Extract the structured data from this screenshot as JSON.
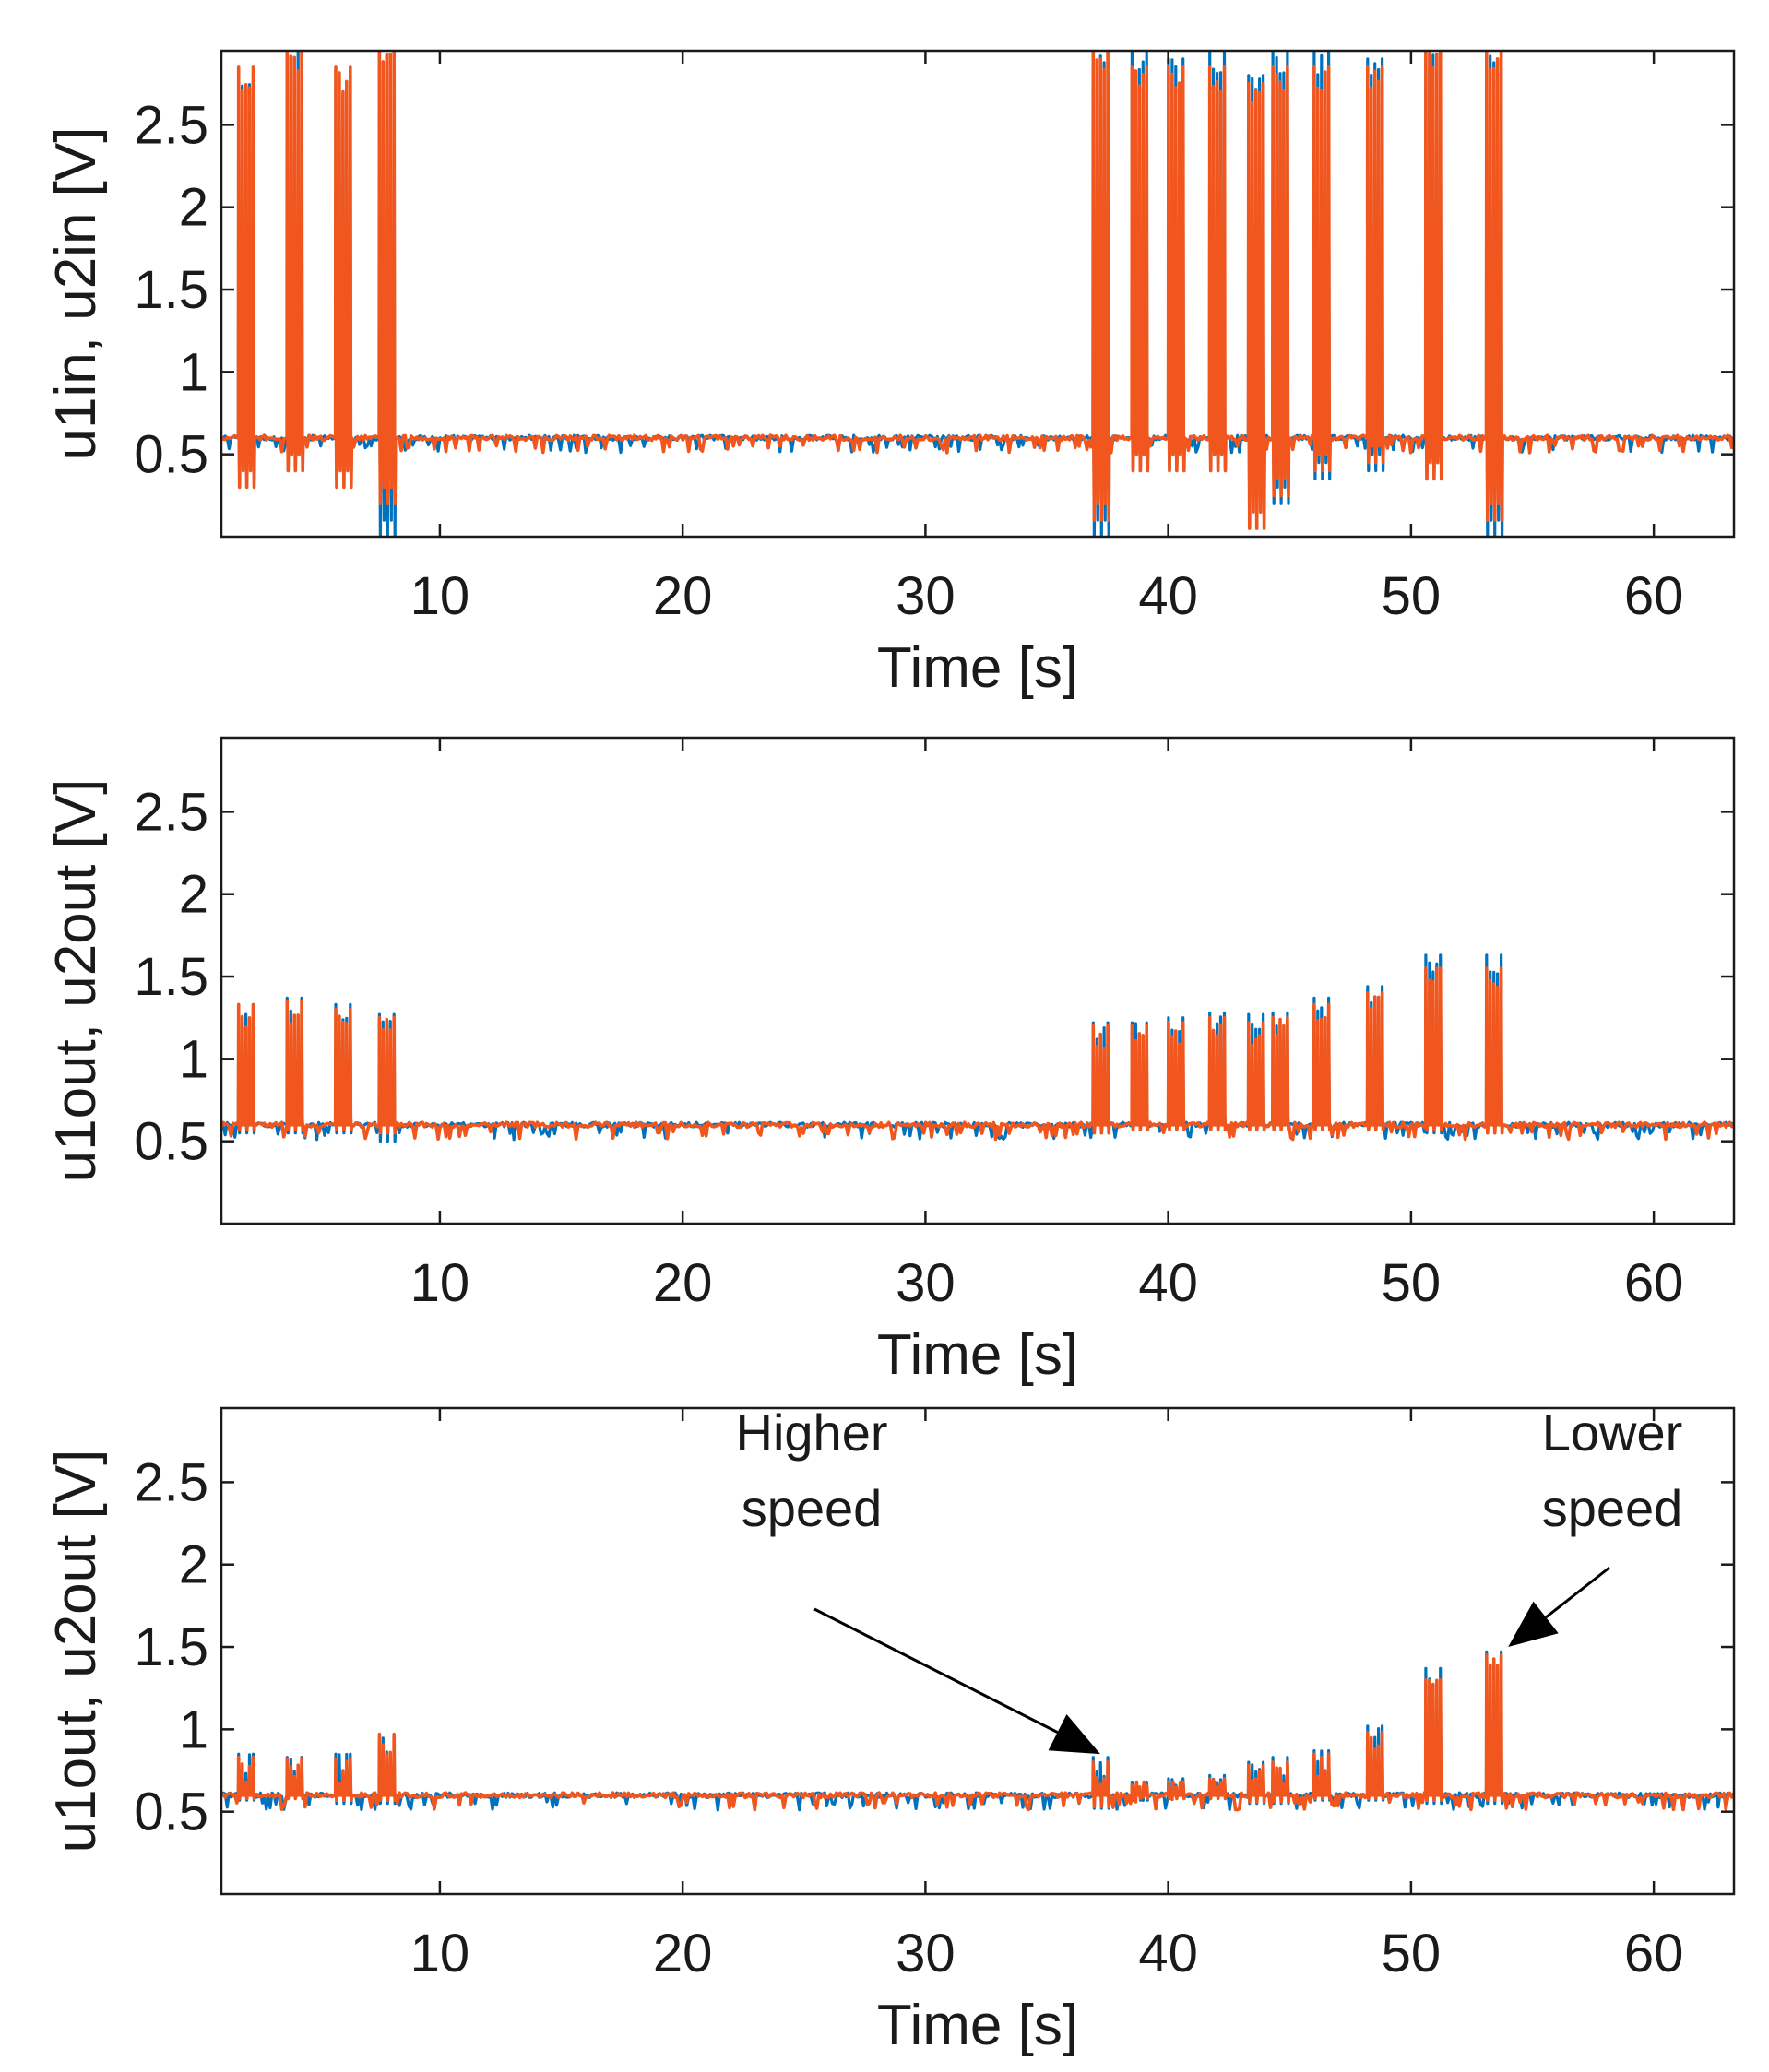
{
  "chart_data": [
    {
      "type": "line",
      "title": "",
      "xlabel": "Time [s]",
      "ylabel": "u1in, u2in [V]",
      "xlim": [
        1,
        63.3
      ],
      "ylim": [
        0,
        2.95
      ],
      "xticks": [
        10,
        20,
        30,
        40,
        50,
        60
      ],
      "xtick_labels": [
        "10",
        "20",
        "30",
        "40",
        "50",
        "60"
      ],
      "yticks": [
        0.5,
        1,
        1.5,
        2,
        2.5
      ],
      "ytick_labels": [
        "0.5",
        "1",
        "1.5",
        "2",
        "2.5"
      ],
      "grid": false,
      "baseline": 0.6,
      "series": [
        {
          "name": "u1",
          "color": "#0072BD",
          "bursts": [
            {
              "t": 2.0,
              "peak": 2.8,
              "dip": 0.35
            },
            {
              "t": 4.0,
              "peak": 2.95,
              "dip": 0.4
            },
            {
              "t": 6.0,
              "peak": 2.8,
              "dip": 0.35
            },
            {
              "t": 7.8,
              "peak": 2.95,
              "dip": 0.0
            },
            {
              "t": 37.2,
              "peak": 2.95,
              "dip": 0.0
            },
            {
              "t": 38.8,
              "peak": 2.95,
              "dip": 0.4
            },
            {
              "t": 40.3,
              "peak": 2.9,
              "dip": 0.4
            },
            {
              "t": 42.0,
              "peak": 2.95,
              "dip": 0.4
            },
            {
              "t": 43.6,
              "peak": 2.8,
              "dip": 0.1
            },
            {
              "t": 44.6,
              "peak": 2.95,
              "dip": 0.2
            },
            {
              "t": 46.3,
              "peak": 2.95,
              "dip": 0.35
            },
            {
              "t": 48.5,
              "peak": 2.9,
              "dip": 0.4
            },
            {
              "t": 50.9,
              "peak": 2.95,
              "dip": 0.35
            },
            {
              "t": 53.4,
              "peak": 2.95,
              "dip": 0.0
            }
          ]
        },
        {
          "name": "u2",
          "color": "#F0561D",
          "bursts": [
            {
              "t": 2.0,
              "peak": 2.85,
              "dip": 0.3
            },
            {
              "t": 4.0,
              "peak": 2.95,
              "dip": 0.4
            },
            {
              "t": 6.0,
              "peak": 2.85,
              "dip": 0.3
            },
            {
              "t": 7.8,
              "peak": 2.95,
              "dip": 0.2
            },
            {
              "t": 37.2,
              "peak": 2.95,
              "dip": 0.1
            },
            {
              "t": 38.8,
              "peak": 2.85,
              "dip": 0.4
            },
            {
              "t": 40.3,
              "peak": 2.85,
              "dip": 0.4
            },
            {
              "t": 42.0,
              "peak": 2.85,
              "dip": 0.4
            },
            {
              "t": 43.6,
              "peak": 2.75,
              "dip": 0.05
            },
            {
              "t": 44.6,
              "peak": 2.85,
              "dip": 0.25
            },
            {
              "t": 46.3,
              "peak": 2.85,
              "dip": 0.4
            },
            {
              "t": 48.5,
              "peak": 2.85,
              "dip": 0.45
            },
            {
              "t": 50.9,
              "peak": 2.95,
              "dip": 0.35
            },
            {
              "t": 53.4,
              "peak": 2.95,
              "dip": 0.1
            }
          ]
        }
      ],
      "annotations": []
    },
    {
      "type": "line",
      "title": "",
      "xlabel": "Time [s]",
      "ylabel": "u1out, u2out [V]",
      "xlim": [
        1,
        63.3
      ],
      "ylim": [
        0,
        2.95
      ],
      "xticks": [
        10,
        20,
        30,
        40,
        50,
        60
      ],
      "xtick_labels": [
        "10",
        "20",
        "30",
        "40",
        "50",
        "60"
      ],
      "yticks": [
        0.5,
        1,
        1.5,
        2,
        2.5
      ],
      "ytick_labels": [
        "0.5",
        "1",
        "1.5",
        "2",
        "2.5"
      ],
      "grid": false,
      "baseline": 0.6,
      "series": [
        {
          "name": "u1",
          "color": "#0072BD",
          "bursts": [
            {
              "t": 2.0,
              "peak": 1.3,
              "dip": 0.55
            },
            {
              "t": 4.0,
              "peak": 1.37,
              "dip": 0.55
            },
            {
              "t": 6.0,
              "peak": 1.33,
              "dip": 0.55
            },
            {
              "t": 7.8,
              "peak": 1.27,
              "dip": 0.5
            },
            {
              "t": 37.2,
              "peak": 1.22,
              "dip": 0.55
            },
            {
              "t": 38.8,
              "peak": 1.22,
              "dip": 0.57
            },
            {
              "t": 40.3,
              "peak": 1.25,
              "dip": 0.57
            },
            {
              "t": 42.0,
              "peak": 1.28,
              "dip": 0.57
            },
            {
              "t": 43.6,
              "peak": 1.27,
              "dip": 0.57
            },
            {
              "t": 44.6,
              "peak": 1.28,
              "dip": 0.57
            },
            {
              "t": 46.3,
              "peak": 1.37,
              "dip": 0.57
            },
            {
              "t": 48.5,
              "peak": 1.44,
              "dip": 0.57
            },
            {
              "t": 50.9,
              "peak": 1.63,
              "dip": 0.55
            },
            {
              "t": 53.4,
              "peak": 1.63,
              "dip": 0.55
            }
          ]
        },
        {
          "name": "u2",
          "color": "#F0561D",
          "bursts": [
            {
              "t": 2.0,
              "peak": 1.33,
              "dip": 0.57
            },
            {
              "t": 4.0,
              "peak": 1.35,
              "dip": 0.57
            },
            {
              "t": 6.0,
              "peak": 1.3,
              "dip": 0.57
            },
            {
              "t": 7.8,
              "peak": 1.25,
              "dip": 0.55
            },
            {
              "t": 37.2,
              "peak": 1.2,
              "dip": 0.55
            },
            {
              "t": 38.8,
              "peak": 1.2,
              "dip": 0.57
            },
            {
              "t": 40.3,
              "peak": 1.22,
              "dip": 0.57
            },
            {
              "t": 42.0,
              "peak": 1.25,
              "dip": 0.57
            },
            {
              "t": 43.6,
              "peak": 1.22,
              "dip": 0.57
            },
            {
              "t": 44.6,
              "peak": 1.25,
              "dip": 0.57
            },
            {
              "t": 46.3,
              "peak": 1.33,
              "dip": 0.57
            },
            {
              "t": 48.5,
              "peak": 1.4,
              "dip": 0.57
            },
            {
              "t": 50.9,
              "peak": 1.55,
              "dip": 0.57
            },
            {
              "t": 53.4,
              "peak": 1.55,
              "dip": 0.55
            }
          ]
        }
      ],
      "annotations": []
    },
    {
      "type": "line",
      "title": "",
      "xlabel": "Time [s]",
      "ylabel": "u1out, u2out [V]",
      "xlim": [
        1,
        63.3
      ],
      "ylim": [
        0,
        2.95
      ],
      "xticks": [
        10,
        20,
        30,
        40,
        50,
        60
      ],
      "xtick_labels": [
        "10",
        "20",
        "30",
        "40",
        "50",
        "60"
      ],
      "yticks": [
        0.5,
        1,
        1.5,
        2,
        2.5
      ],
      "ytick_labels": [
        "0.5",
        "1",
        "1.5",
        "2",
        "2.5"
      ],
      "grid": false,
      "baseline": 0.6,
      "series": [
        {
          "name": "u1",
          "color": "#0072BD",
          "bursts": [
            {
              "t": 2.0,
              "peak": 0.85,
              "dip": 0.57
            },
            {
              "t": 4.0,
              "peak": 0.83,
              "dip": 0.58
            },
            {
              "t": 6.0,
              "peak": 0.85,
              "dip": 0.55
            },
            {
              "t": 7.8,
              "peak": 0.95,
              "dip": 0.55
            },
            {
              "t": 37.2,
              "peak": 0.83,
              "dip": 0.52
            },
            {
              "t": 38.8,
              "peak": 0.68,
              "dip": 0.57
            },
            {
              "t": 40.3,
              "peak": 0.7,
              "dip": 0.58
            },
            {
              "t": 42.0,
              "peak": 0.72,
              "dip": 0.58
            },
            {
              "t": 43.6,
              "peak": 0.8,
              "dip": 0.55
            },
            {
              "t": 44.6,
              "peak": 0.83,
              "dip": 0.55
            },
            {
              "t": 46.3,
              "peak": 0.87,
              "dip": 0.57
            },
            {
              "t": 48.5,
              "peak": 1.02,
              "dip": 0.57
            },
            {
              "t": 50.9,
              "peak": 1.37,
              "dip": 0.55
            },
            {
              "t": 53.4,
              "peak": 1.47,
              "dip": 0.55
            }
          ]
        },
        {
          "name": "u2",
          "color": "#F0561D",
          "bursts": [
            {
              "t": 2.0,
              "peak": 0.83,
              "dip": 0.58
            },
            {
              "t": 4.0,
              "peak": 0.82,
              "dip": 0.58
            },
            {
              "t": 6.0,
              "peak": 0.82,
              "dip": 0.57
            },
            {
              "t": 7.8,
              "peak": 0.97,
              "dip": 0.57
            },
            {
              "t": 37.2,
              "peak": 0.8,
              "dip": 0.53
            },
            {
              "t": 38.8,
              "peak": 0.66,
              "dip": 0.58
            },
            {
              "t": 40.3,
              "peak": 0.68,
              "dip": 0.58
            },
            {
              "t": 42.0,
              "peak": 0.7,
              "dip": 0.58
            },
            {
              "t": 43.6,
              "peak": 0.78,
              "dip": 0.56
            },
            {
              "t": 44.6,
              "peak": 0.8,
              "dip": 0.56
            },
            {
              "t": 46.3,
              "peak": 0.85,
              "dip": 0.58
            },
            {
              "t": 48.5,
              "peak": 0.98,
              "dip": 0.58
            },
            {
              "t": 50.9,
              "peak": 1.3,
              "dip": 0.57
            },
            {
              "t": 53.4,
              "peak": 1.45,
              "dip": 0.57
            }
          ]
        }
      ],
      "annotations": [
        {
          "lines": [
            "Higher",
            "speed"
          ],
          "target_x": 37.2,
          "target_y": 0.85
        },
        {
          "lines": [
            "Lower",
            "speed"
          ],
          "target_x": 54.0,
          "target_y": 1.5
        }
      ]
    }
  ]
}
